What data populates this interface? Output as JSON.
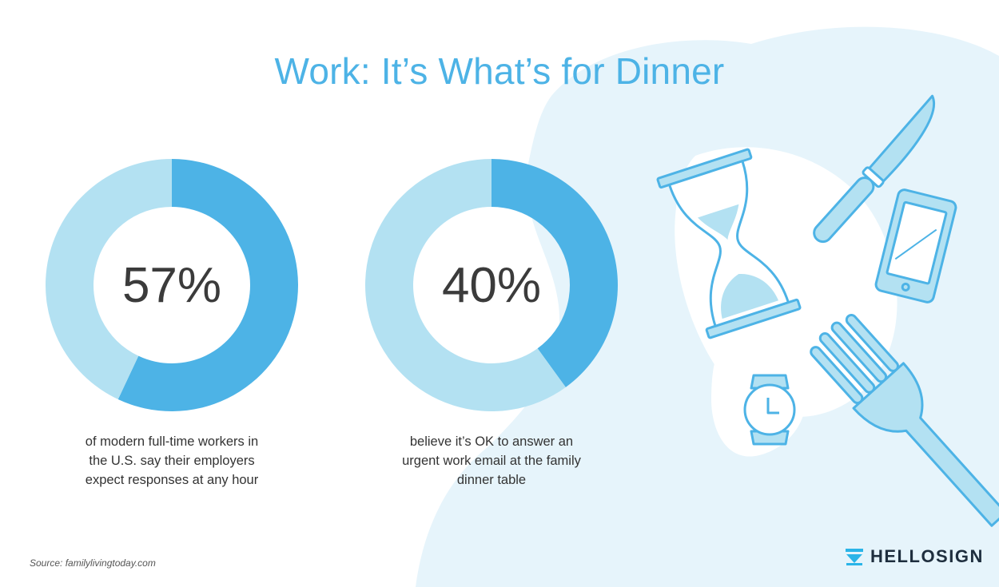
{
  "title": "Work: It’s What’s for Dinner",
  "chart_data": [
    {
      "type": "pie",
      "variant": "donut",
      "values": [
        57,
        43
      ],
      "center_label": "57%",
      "caption": "of modern full-time workers in the U.S. say their employers expect responses at any hour",
      "colors": [
        "#4db3e6",
        "#b3e1f2"
      ]
    },
    {
      "type": "pie",
      "variant": "donut",
      "values": [
        40,
        60
      ],
      "center_label": "40%",
      "caption": "believe it’s OK to answer an urgent work email at the family dinner table",
      "colors": [
        "#4db3e6",
        "#b3e1f2"
      ]
    }
  ],
  "captions": {
    "left": [
      "of modern full-time workers in",
      "the U.S. say their employers",
      "expect responses at any hour"
    ],
    "right": [
      "believe it’s OK to answer an",
      "urgent work email at the family",
      "dinner table"
    ]
  },
  "source": "Source: familylivingtoday.com",
  "brand": "HELLOSIGN",
  "colors": {
    "accent": "#4db3e6",
    "light": "#b3e1f2",
    "background_blob": "#e6f4fb",
    "text": "#333333"
  },
  "illustration_icons": [
    "hourglass-icon",
    "knife-icon",
    "phone-icon",
    "watch-icon",
    "fork-icon"
  ]
}
